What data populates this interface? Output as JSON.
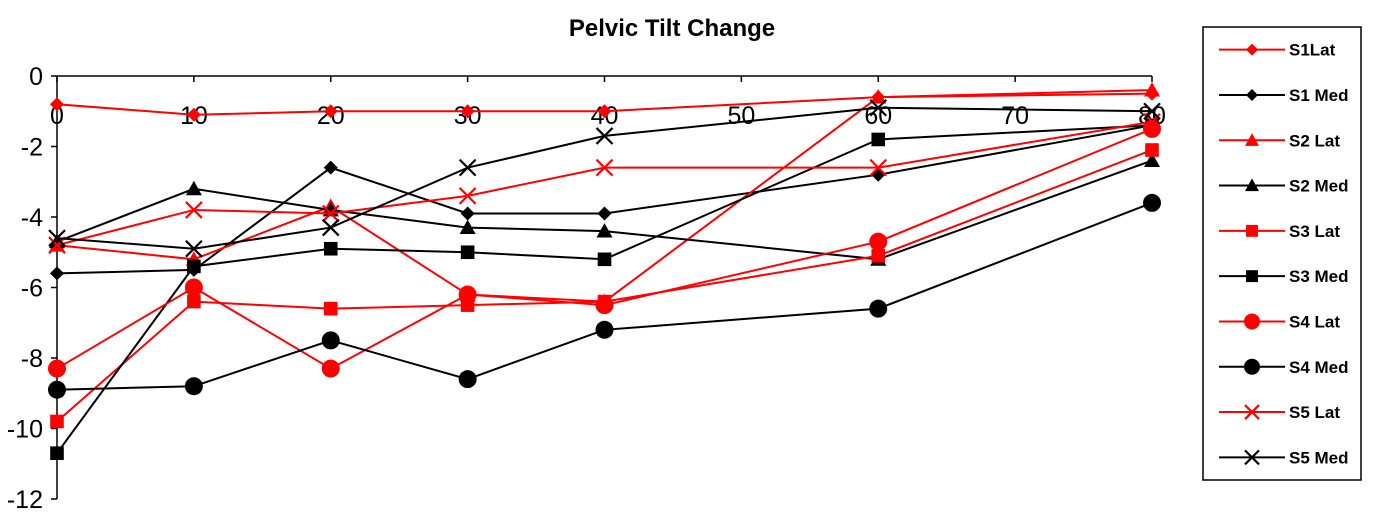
{
  "chart_data": {
    "type": "line",
    "title": "Pelvic Tilt Change",
    "xlabel": "",
    "ylabel": "",
    "xlim": [
      0,
      80
    ],
    "ylim": [
      -12,
      0
    ],
    "x_ticks": [
      "0",
      "10",
      "20",
      "30",
      "40",
      "50",
      "60",
      "70",
      "80"
    ],
    "y_ticks": [
      "0",
      "-2",
      "-4",
      "-6",
      "-8",
      "-10",
      "-12"
    ],
    "grid": false,
    "legend_position": "right",
    "x": [
      0,
      10,
      20,
      30,
      40,
      60,
      80
    ],
    "series": [
      {
        "name": "S1Lat",
        "color": "#ff0000",
        "marker": "diamond",
        "values": [
          -0.8,
          -1.1,
          -1.0,
          -1.0,
          -1.0,
          -0.6,
          -0.5
        ]
      },
      {
        "name": "S1 Med",
        "color": "#000000",
        "marker": "diamond",
        "values": [
          -5.6,
          -5.5,
          -2.6,
          -3.9,
          -3.9,
          -2.8,
          -1.4
        ]
      },
      {
        "name": "S2  Lat",
        "color": "#ff0000",
        "marker": "triangle",
        "values": [
          -4.8,
          -5.2,
          -3.7,
          -6.2,
          -6.4,
          -0.6,
          -0.4
        ]
      },
      {
        "name": "S2 Med",
        "color": "#000000",
        "marker": "triangle",
        "values": [
          -4.7,
          -3.2,
          -3.8,
          -4.3,
          -4.4,
          -5.2,
          -2.4
        ]
      },
      {
        "name": "S3  Lat",
        "color": "#ff0000",
        "marker": "square",
        "values": [
          -9.8,
          -6.4,
          -6.6,
          -6.5,
          -6.4,
          -5.1,
          -2.1
        ]
      },
      {
        "name": "S3 Med",
        "color": "#000000",
        "marker": "square",
        "values": [
          -10.7,
          -5.4,
          -4.9,
          -5.0,
          -5.2,
          -1.8,
          -1.4
        ]
      },
      {
        "name": "S4  Lat",
        "color": "#ff0000",
        "marker": "circle",
        "values": [
          -8.3,
          -6.0,
          -8.3,
          -6.2,
          -6.5,
          -4.7,
          -1.5
        ]
      },
      {
        "name": "S4 Med",
        "color": "#000000",
        "marker": "circle",
        "values": [
          -8.9,
          -8.8,
          -7.5,
          -8.6,
          -7.2,
          -6.6,
          -3.6
        ]
      },
      {
        "name": "S5 Lat",
        "color": "#ff0000",
        "marker": "x",
        "values": [
          -4.8,
          -3.8,
          -3.9,
          -3.4,
          -2.6,
          -2.6,
          -1.3
        ]
      },
      {
        "name": "S5 Med",
        "color": "#000000",
        "marker": "x",
        "values": [
          -4.6,
          -4.9,
          -4.3,
          -2.6,
          -1.7,
          -0.9,
          -1.0
        ]
      }
    ]
  }
}
